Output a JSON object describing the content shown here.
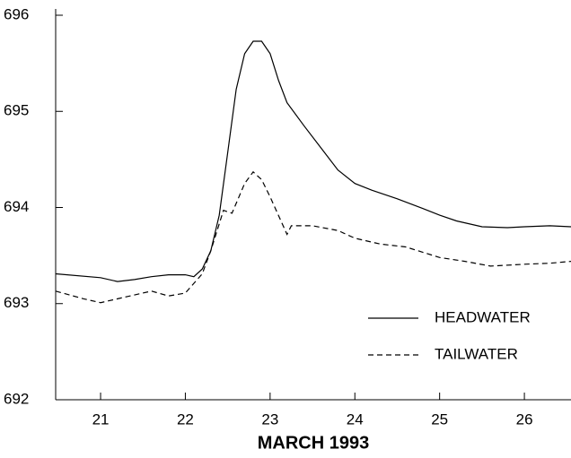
{
  "chart_data": {
    "type": "line",
    "x_label": "MARCH  1993",
    "xlim": [
      20.47,
      26.55
    ],
    "xticks": [
      21,
      22,
      23,
      24,
      25,
      26
    ],
    "ylim": [
      692,
      696
    ],
    "yticks": [
      692,
      693,
      694,
      695,
      696
    ],
    "legend": "lower right",
    "series": [
      {
        "name": "HEADWATER",
        "color": "#000000",
        "dash": "solid",
        "x": [
          20.47,
          21.0,
          21.2,
          21.4,
          21.6,
          21.8,
          22.0,
          22.1,
          22.2,
          22.3,
          22.4,
          22.5,
          22.6,
          22.7,
          22.8,
          22.9,
          23.0,
          23.1,
          23.2,
          23.4,
          23.6,
          23.8,
          24.0,
          24.2,
          24.5,
          24.8,
          25.0,
          25.2,
          25.5,
          25.8,
          26.0,
          26.3,
          26.55
        ],
        "values": [
          693.31,
          693.27,
          693.23,
          693.25,
          693.28,
          693.3,
          693.3,
          693.28,
          693.36,
          693.55,
          693.92,
          694.57,
          695.23,
          695.6,
          695.73,
          695.73,
          695.6,
          695.32,
          695.09,
          694.85,
          694.62,
          694.39,
          694.25,
          694.18,
          694.09,
          693.99,
          693.92,
          693.86,
          693.8,
          693.79,
          693.8,
          693.81,
          693.8
        ]
      },
      {
        "name": "TAILWATER",
        "color": "#000000",
        "dash": "dashed",
        "x": [
          20.47,
          20.8,
          21.0,
          21.3,
          21.6,
          21.8,
          22.0,
          22.2,
          22.3,
          22.45,
          22.55,
          22.7,
          22.8,
          22.9,
          23.0,
          23.2,
          23.25,
          23.5,
          23.8,
          24.0,
          24.3,
          24.6,
          25.0,
          25.3,
          25.6,
          26.0,
          26.3,
          26.55
        ],
        "values": [
          693.13,
          693.05,
          693.01,
          693.07,
          693.13,
          693.08,
          693.11,
          693.31,
          693.55,
          693.97,
          693.94,
          694.25,
          694.37,
          694.29,
          694.11,
          693.72,
          693.81,
          693.81,
          693.76,
          693.68,
          693.62,
          693.59,
          693.48,
          693.44,
          693.39,
          693.41,
          693.42,
          693.44
        ]
      }
    ]
  }
}
